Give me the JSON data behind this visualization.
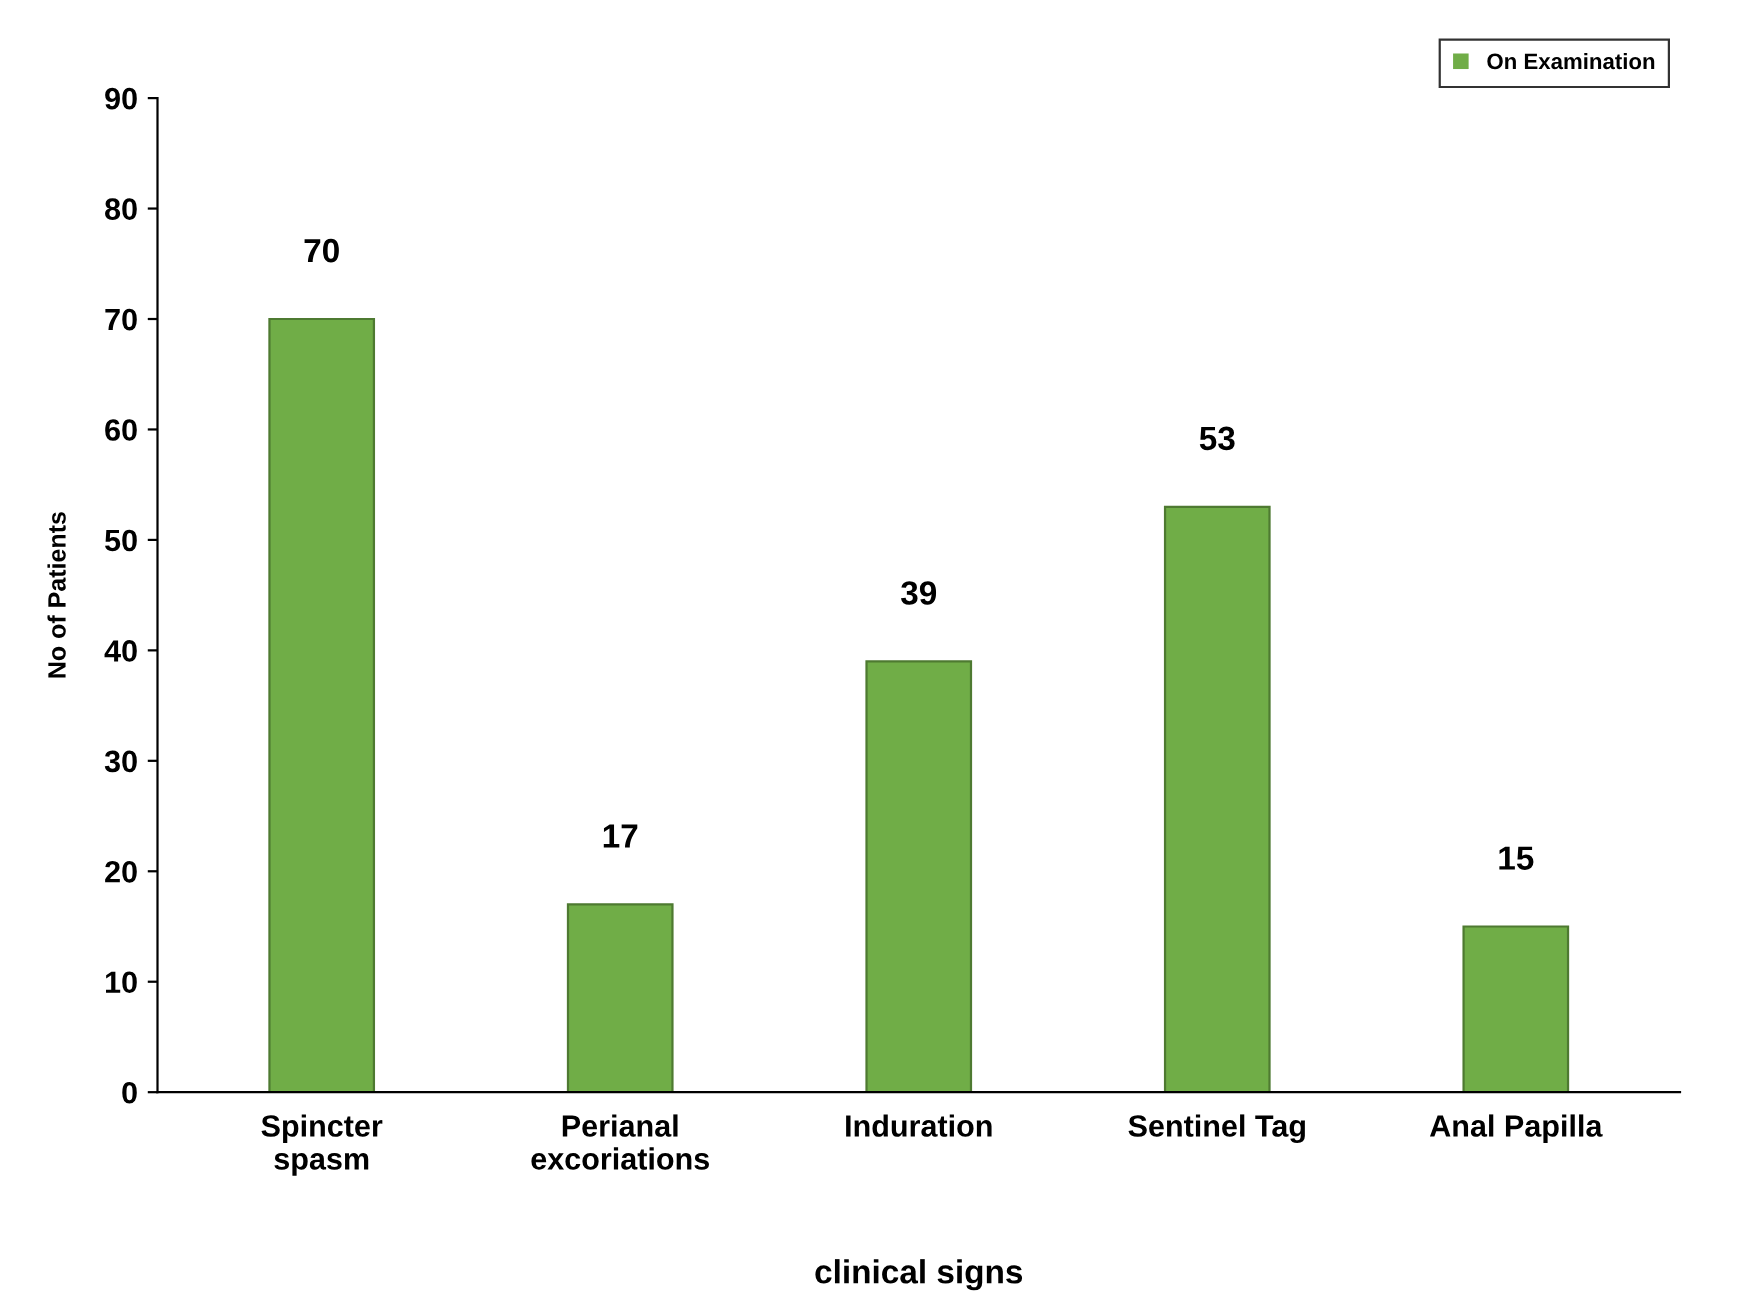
{
  "chart_data": {
    "type": "bar",
    "xlabel": "clinical signs",
    "ylabel": "No of Patients",
    "categories": [
      "Spincter\nspasm",
      "Perianal\nexcoriations",
      "Induration",
      "Sentinel Tag",
      "Anal Papilla"
    ],
    "series": [
      {
        "name": "On Examination",
        "color": "#70ad47",
        "values": [
          70,
          17,
          39,
          53,
          15
        ]
      }
    ],
    "ylim": [
      0,
      90
    ],
    "yticks": [
      0,
      10,
      20,
      30,
      40,
      50,
      60,
      70,
      80,
      90
    ],
    "grid": false,
    "legend": "top right",
    "data_labels": true
  }
}
